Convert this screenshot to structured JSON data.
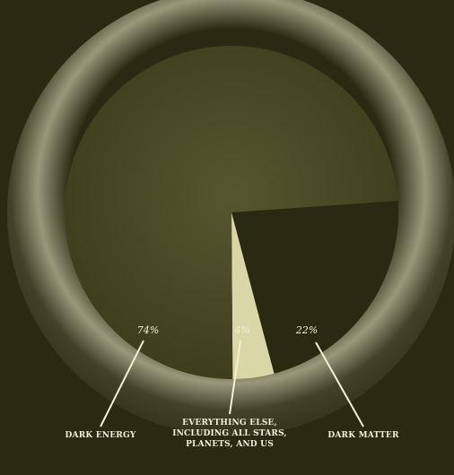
{
  "chart_data": {
    "type": "pie",
    "slices": [
      {
        "label": "DARK ENERGY",
        "value": 74,
        "value_label": "74%",
        "color": "#4a4a25"
      },
      {
        "label": "EVERYTHING ELSE, INCLUDING ALL STARS, PLANETS, AND US",
        "value": 4,
        "value_label": "4%",
        "color": "#d9d7a8"
      },
      {
        "label": "DARK MATTER",
        "value": 22,
        "value_label": "22%",
        "color": "#2a2a12"
      }
    ],
    "title": "",
    "legend": "none"
  },
  "colors": {
    "background": "#2a2a12",
    "glow": "#f5f2cf",
    "label": "#f2f0d6"
  }
}
